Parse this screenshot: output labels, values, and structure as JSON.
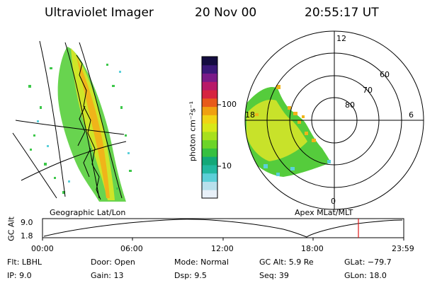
{
  "header": {
    "instrument": "Ultraviolet Imager",
    "date": "20 Nov 00",
    "time": "20:55:17 UT"
  },
  "colorbar": {
    "label": "photon cm⁻²s⁻¹",
    "ticks": [
      "100",
      "10"
    ],
    "colors": [
      "#e8f0f8",
      "#b8e0ec",
      "#5ccfd8",
      "#22b8a0",
      "#12a878",
      "#36c040",
      "#6cd428",
      "#a8e01c",
      "#d8e818",
      "#f0d414",
      "#f0a010",
      "#e85a1a",
      "#d62440",
      "#b81868",
      "#7a1a88",
      "#3a1878",
      "#140c40"
    ]
  },
  "polar": {
    "mlt_labels": [
      "12",
      "18",
      "6",
      "0"
    ],
    "mlat_labels": [
      "60",
      "70",
      "80"
    ]
  },
  "projection_labels": {
    "left": "Geographic Lat/Lon",
    "right": "Apex MLat/MLT"
  },
  "orbit": {
    "ylabel": "GC Alt",
    "yticks": [
      "9.0",
      "1.8"
    ],
    "xticks": [
      "00:00",
      "06:00",
      "12:00",
      "18:00",
      "23:59"
    ],
    "marker_color": "#e01818"
  },
  "info": {
    "filter": "Flt:  LBHL",
    "door": "Door:  Open",
    "mode": "Mode:  Normal",
    "gc_alt": "GC Alt:  5.9 Re",
    "glat": "GLat:  −79.7",
    "ip": "IP:   9.0",
    "gain": "Gain:  13",
    "dsp": "Dsp:      9.5",
    "seq": "Seq:  39",
    "glon": "GLon:   18.0"
  }
}
